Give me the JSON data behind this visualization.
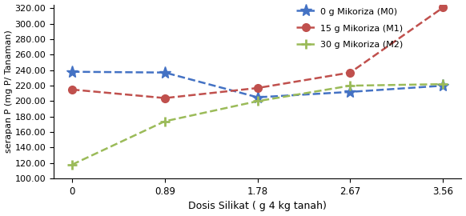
{
  "x": [
    0,
    0.89,
    1.78,
    2.67,
    3.56
  ],
  "M0_y": [
    238,
    237,
    205,
    212,
    220
  ],
  "M1_y": [
    215,
    204,
    217,
    237,
    321
  ],
  "M2_y": [
    118,
    174,
    200,
    220,
    222
  ],
  "M0_color": "#4472C4",
  "M1_color": "#C0504D",
  "M2_color": "#9BBB59",
  "xlabel": "Dosis Silikat ( g 4 kg tanah)",
  "ylabel": "serapan P (mg P/ Tanaman)",
  "ylim": [
    100,
    325
  ],
  "yticks": [
    100.0,
    120.0,
    140.0,
    160.0,
    180.0,
    200.0,
    220.0,
    240.0,
    260.0,
    280.0,
    300.0,
    320.0
  ],
  "xticks": [
    0,
    0.89,
    1.78,
    2.67,
    3.56
  ],
  "xtick_labels": [
    "0",
    "0.89",
    "1.78",
    "2.67",
    "3.56"
  ],
  "legend_M0": "0 g Mikoriza (M0)",
  "legend_M1": "15 g Mikoriza (M1)",
  "legend_M2": "30 g Mikoriza (M2)"
}
